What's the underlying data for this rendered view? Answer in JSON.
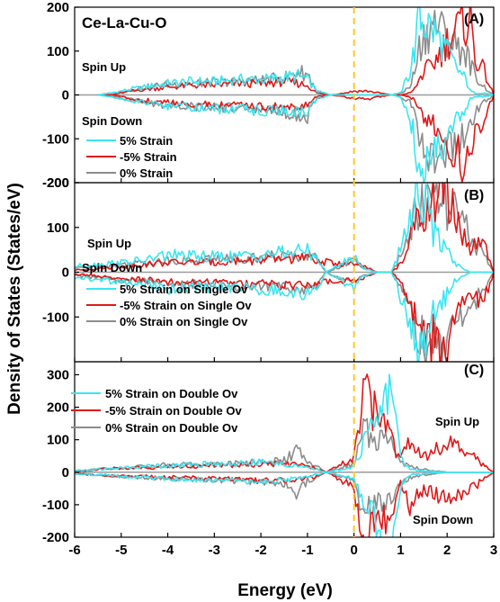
{
  "figure": {
    "xlabel": "Energy (eV)",
    "ylabel": "Density of States (States/eV)",
    "fermi_line_color": "#FFC72C",
    "colors": {
      "plus5": "#39E6F2",
      "minus5": "#E01818",
      "zero": "#8C8C8C"
    }
  },
  "chart_data": [
    {
      "type": "line",
      "panel_label": "(A)",
      "title": "Ce-La-Cu-O",
      "xlim": [
        -6,
        3
      ],
      "ylim": [
        -200,
        200
      ],
      "xticks": [
        -6,
        -5,
        -4,
        -3,
        -2,
        -1,
        0,
        1,
        2,
        3
      ],
      "yticks": [
        -200,
        -100,
        0,
        100,
        200
      ],
      "show_x_tick_labels": false,
      "annotations": {
        "spin_up": "Spin Up",
        "spin_down": "Spin Down"
      },
      "legend": [
        "5% Strain",
        "-5% Strain",
        "0% Strain"
      ],
      "series": [
        {
          "name": "5% Strain",
          "x": [
            -5.5,
            -5.2,
            -4.8,
            -4.5,
            -4,
            -3.5,
            -3,
            -2.5,
            -2,
            -1.5,
            -1.2,
            -1,
            -0.8,
            -0.5,
            -0.2,
            0,
            0.3,
            0.8,
            1.0,
            1.2,
            1.3,
            1.4,
            1.5,
            1.6,
            1.7,
            1.8,
            2.0,
            2.2,
            2.4,
            2.5,
            2.6,
            2.8,
            3.0
          ],
          "up": [
            0,
            5,
            15,
            20,
            30,
            35,
            35,
            40,
            40,
            45,
            50,
            40,
            10,
            0,
            0,
            0,
            0,
            0,
            5,
            60,
            120,
            200,
            190,
            180,
            170,
            150,
            110,
            70,
            40,
            10,
            5,
            5,
            0
          ]
        },
        {
          "name": "-5% Strain",
          "x": [
            -5.5,
            -5.2,
            -4.8,
            -4.5,
            -4,
            -3.5,
            -3,
            -2.5,
            -2,
            -1.5,
            -1.2,
            -1,
            -0.8,
            -0.5,
            -0.2,
            0,
            0.3,
            0.8,
            1.0,
            1.2,
            1.3,
            1.4,
            1.5,
            1.6,
            1.7,
            1.8,
            2.0,
            2.2,
            2.4,
            2.5,
            2.6,
            2.8,
            3.0
          ],
          "up": [
            0,
            0,
            10,
            15,
            20,
            25,
            25,
            30,
            30,
            35,
            30,
            25,
            5,
            0,
            5,
            10,
            10,
            0,
            0,
            5,
            15,
            40,
            60,
            70,
            80,
            100,
            140,
            170,
            190,
            200,
            100,
            60,
            0
          ]
        },
        {
          "name": "0% Strain",
          "x": [
            -5.5,
            -5.2,
            -4.8,
            -4.5,
            -4,
            -3.5,
            -3,
            -2.5,
            -2,
            -1.5,
            -1.2,
            -1,
            -0.8,
            -0.5,
            -0.2,
            0,
            0.3,
            0.8,
            1.0,
            1.2,
            1.3,
            1.4,
            1.5,
            1.6,
            1.7,
            1.8,
            2.0,
            2.2,
            2.4,
            2.5,
            2.6,
            2.8,
            3.0
          ],
          "up": [
            0,
            5,
            12,
            20,
            28,
            30,
            32,
            35,
            38,
            45,
            60,
            55,
            10,
            0,
            0,
            0,
            0,
            0,
            5,
            20,
            60,
            120,
            150,
            170,
            190,
            180,
            150,
            130,
            110,
            80,
            50,
            20,
            0
          ]
        }
      ]
    },
    {
      "type": "line",
      "panel_label": "(B)",
      "xlim": [
        -6,
        3
      ],
      "ylim": [
        -200,
        200
      ],
      "xticks": [
        -6,
        -5,
        -4,
        -3,
        -2,
        -1,
        0,
        1,
        2,
        3
      ],
      "yticks": [
        -100,
        0,
        100,
        200
      ],
      "show_x_tick_labels": false,
      "annotations": {
        "spin_up": "Spin Up",
        "spin_down": "Spin Down"
      },
      "legend": [
        "5% Strain on Single Ov",
        "-5% Strain on Single Ov",
        "0% Strain on Single Ov"
      ],
      "series": [
        {
          "name": "5% Strain on Single Ov",
          "x": [
            -6,
            -5.5,
            -5,
            -4.5,
            -4,
            -3.5,
            -3,
            -2.5,
            -2,
            -1.5,
            -1,
            -0.8,
            -0.6,
            0,
            0.2,
            0.5,
            0.8,
            1.0,
            1.2,
            1.3,
            1.5,
            1.7,
            2.0,
            2.2,
            2.5,
            2.8,
            3.0
          ],
          "up": [
            15,
            20,
            25,
            30,
            45,
            40,
            40,
            40,
            45,
            50,
            55,
            40,
            0,
            40,
            10,
            0,
            0,
            60,
            150,
            200,
            200,
            100,
            60,
            20,
            0,
            0,
            0
          ]
        },
        {
          "name": "-5% Strain on Single Ov",
          "x": [
            -6,
            -5.5,
            -5,
            -4.5,
            -4,
            -3.5,
            -3,
            -2.5,
            -2,
            -1.5,
            -1,
            -0.8,
            -0.6,
            0,
            0.2,
            0.5,
            0.8,
            1.0,
            1.2,
            1.3,
            1.5,
            1.7,
            2.0,
            2.2,
            2.5,
            2.8,
            3.0
          ],
          "up": [
            5,
            10,
            15,
            20,
            25,
            25,
            25,
            30,
            30,
            35,
            35,
            30,
            25,
            20,
            15,
            0,
            0,
            20,
            80,
            120,
            160,
            180,
            200,
            130,
            60,
            70,
            0
          ]
        },
        {
          "name": "0% Strain on Single Ov",
          "x": [
            -6,
            -5.5,
            -5,
            -4.5,
            -4,
            -3.5,
            -3,
            -2.5,
            -2,
            -1.5,
            -1,
            -0.8,
            -0.6,
            0,
            0.2,
            0.5,
            0.8,
            1.0,
            1.2,
            1.3,
            1.5,
            1.7,
            2.0,
            2.2,
            2.5,
            2.8,
            3.0
          ],
          "up": [
            10,
            15,
            20,
            25,
            30,
            30,
            35,
            35,
            40,
            40,
            45,
            35,
            0,
            30,
            10,
            0,
            0,
            40,
            100,
            150,
            180,
            190,
            170,
            150,
            90,
            40,
            0
          ]
        }
      ]
    },
    {
      "type": "line",
      "panel_label": "(C)",
      "xlim": [
        -6,
        3
      ],
      "ylim": [
        -200,
        340
      ],
      "xticks": [
        -6,
        -5,
        -4,
        -3,
        -2,
        -1,
        0,
        1,
        2,
        3
      ],
      "yticks": [
        -200,
        -100,
        0,
        100,
        200,
        300
      ],
      "show_x_tick_labels": true,
      "annotations": {
        "spin_up": "Spin Up",
        "spin_down": "Spin Down"
      },
      "legend": [
        "5% Strain on Double Ov",
        "-5% Strain on Double Ov",
        "0% Strain on Double Ov"
      ],
      "series": [
        {
          "name": "5% Strain on Double Ov",
          "x": [
            -6,
            -5.5,
            -5,
            -4.5,
            -4,
            -3.5,
            -3,
            -2.5,
            -2,
            -1.5,
            -1.2,
            -1,
            -0.8,
            -0.6,
            0,
            0.2,
            0.4,
            0.6,
            0.8,
            0.9,
            1.0,
            1.2,
            1.5,
            2.0,
            2.5,
            3.0
          ],
          "up": [
            5,
            10,
            15,
            20,
            25,
            25,
            30,
            30,
            35,
            30,
            20,
            15,
            10,
            0,
            20,
            100,
            150,
            220,
            320,
            200,
            50,
            10,
            5,
            0,
            0,
            0
          ]
        },
        {
          "name": "-5% Strain on Double Ov",
          "x": [
            -6,
            -5.5,
            -5,
            -4.5,
            -4,
            -3.5,
            -3,
            -2.5,
            -2,
            -1.5,
            -1.2,
            -1,
            -0.8,
            -0.6,
            0,
            0.2,
            0.4,
            0.6,
            0.8,
            0.9,
            1.0,
            1.2,
            1.5,
            2.0,
            2.5,
            3.0
          ],
          "up": [
            5,
            10,
            15,
            15,
            20,
            20,
            25,
            25,
            30,
            30,
            25,
            20,
            15,
            0,
            50,
            280,
            220,
            180,
            150,
            80,
            40,
            130,
            60,
            100,
            60,
            0
          ]
        },
        {
          "name": "0% Strain on Double Ov",
          "x": [
            -6,
            -5.5,
            -5,
            -4.5,
            -4,
            -3.5,
            -3,
            -2.5,
            -2,
            -1.5,
            -1.2,
            -1,
            -0.8,
            -0.6,
            0,
            0.2,
            0.4,
            0.6,
            0.8,
            0.9,
            1.0,
            1.2,
            1.5,
            2.0,
            2.5,
            3.0
          ],
          "up": [
            5,
            10,
            15,
            20,
            25,
            25,
            30,
            30,
            35,
            40,
            80,
            30,
            20,
            0,
            30,
            150,
            120,
            120,
            100,
            60,
            40,
            20,
            10,
            0,
            0,
            0
          ]
        }
      ]
    }
  ]
}
